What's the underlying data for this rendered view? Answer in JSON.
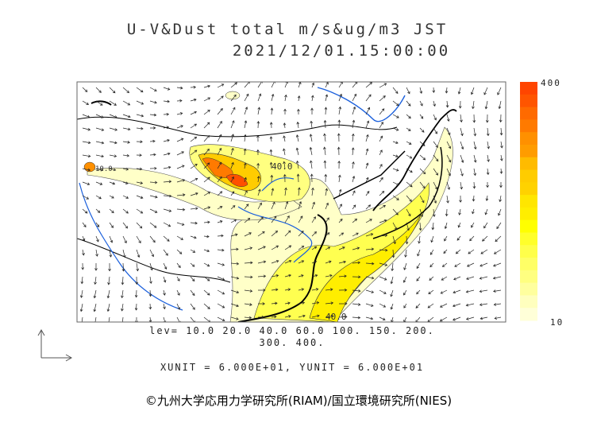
{
  "header": {
    "title_line1": "U-V&Dust total m/s&ug/m3 JST",
    "title_line2": "2021/12/01.15:00:00"
  },
  "colorbar": {
    "max_label": "400",
    "min_label": "10",
    "colors": [
      "#ff4500",
      "#ff5500",
      "#ff6a00",
      "#ff7a00",
      "#ff9000",
      "#ff9c00",
      "#ffbb00",
      "#ffcc00",
      "#ffd200",
      "#ffe600",
      "#ffee00",
      "#ffff00",
      "#ffff2a",
      "#ffff4a",
      "#ffff66",
      "#ffff80",
      "#ffff9e",
      "#ffffbe",
      "#ffffd8"
    ]
  },
  "legend": {
    "levels_line1": "lev= 10.0 20.0 40.0 60.0 100. 150. 200.",
    "levels_line2": "300. 400.",
    "units": "XUNIT = 6.000E+01, YUNIT = 6.000E+01"
  },
  "map_labels": [
    "40.0",
    "40.0",
    "10.0"
  ],
  "credit": "©九州大学応用力学研究所(RIAM)/国立環境研究所(NIES)"
}
